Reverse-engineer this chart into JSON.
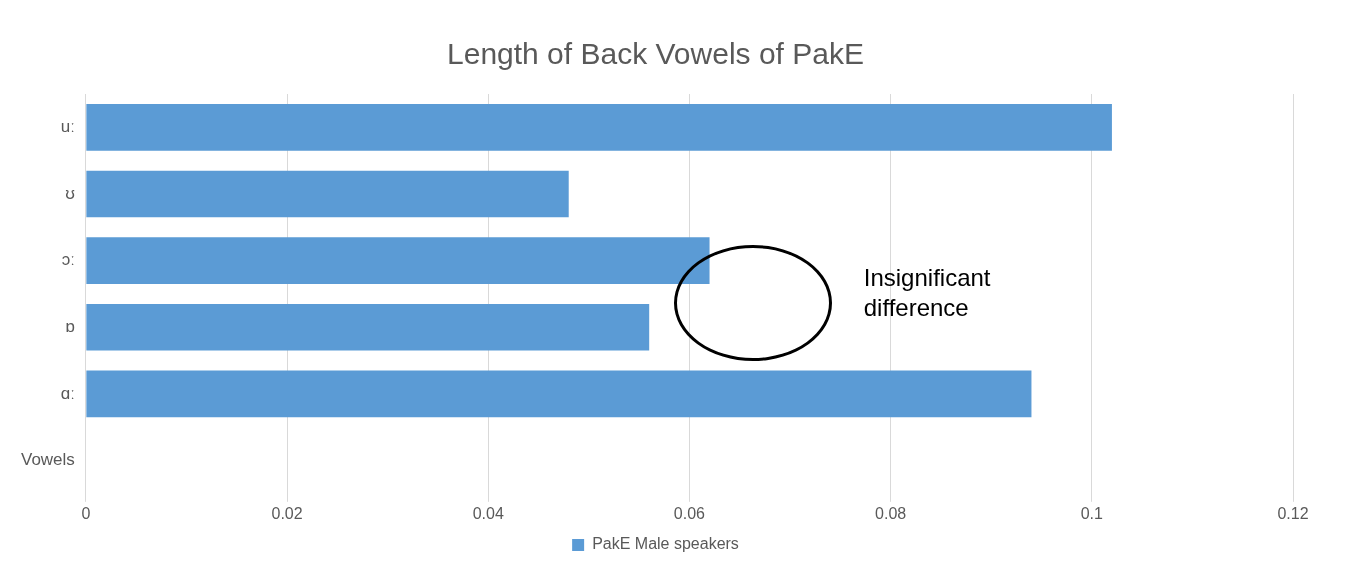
{
  "chart_data": {
    "type": "bar",
    "orientation": "horizontal",
    "title": "Length of Back Vowels of PakE",
    "categories": [
      "uː",
      "ʊ",
      "ɔː",
      "ɒ",
      "ɑː",
      "Vowels"
    ],
    "series": [
      {
        "name": "PakE Male speakers",
        "color": "#5b9bd5",
        "values": [
          0.102,
          0.048,
          0.062,
          0.056,
          0.094,
          0
        ]
      }
    ],
    "xlim": [
      0,
      0.12
    ],
    "xticks": [
      0,
      0.02,
      0.04,
      0.06,
      0.08,
      {
        "value": 0.1,
        "label": "0.1"
      },
      0.12
    ],
    "grid": "x",
    "legend": "bottom",
    "annotations": [
      "Insignificant difference"
    ]
  }
}
